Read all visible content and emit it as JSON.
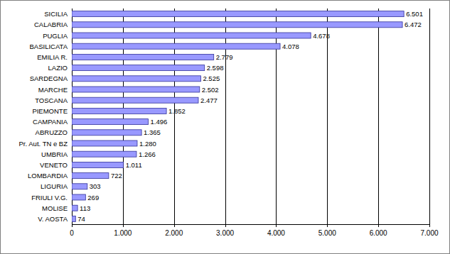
{
  "chart_data": {
    "type": "bar",
    "orientation": "horizontal",
    "categories": [
      "SICILIA",
      "CALABRIA",
      "PUGLIA",
      "BASILICATA",
      "EMILIA R.",
      "LAZIO",
      "SARDEGNA",
      "MARCHE",
      "TOSCANA",
      "PIEMONTE",
      "CAMPANIA",
      "ABRUZZO",
      "Pr. Aut. TN e BZ",
      "UMBRIA",
      "VENETO",
      "LOMBARDIA",
      "LIGURIA",
      "FRIULI V.G.",
      "MOLISE",
      "V. AOSTA"
    ],
    "values": [
      6501,
      6472,
      4678,
      4078,
      2779,
      2598,
      2525,
      2502,
      2477,
      1852,
      1496,
      1365,
      1280,
      1266,
      1011,
      722,
      303,
      269,
      113,
      74
    ],
    "value_labels": [
      "6.501",
      "6.472",
      "4.678",
      "4.078",
      "2.779",
      "2.598",
      "2.525",
      "2.502",
      "2.477",
      "1.852",
      "1.496",
      "1.365",
      "1.280",
      "1.266",
      "1.011",
      "722",
      "303",
      "269",
      "113",
      "74"
    ],
    "data_labels": true,
    "color": "#9999ff",
    "xlim": [
      0,
      7000
    ],
    "xticks": [
      0,
      {
        "value": 1000,
        "label": "1.000"
      },
      {
        "value": 2000,
        "label": "2.000"
      },
      {
        "value": 3000,
        "label": "3.000"
      },
      {
        "value": 4000,
        "label": "4.000"
      },
      {
        "value": 5000,
        "label": "5.000"
      },
      {
        "value": 6000,
        "label": "6.000"
      },
      {
        "value": 7000,
        "label": "7.000"
      }
    ],
    "grid": true
  }
}
